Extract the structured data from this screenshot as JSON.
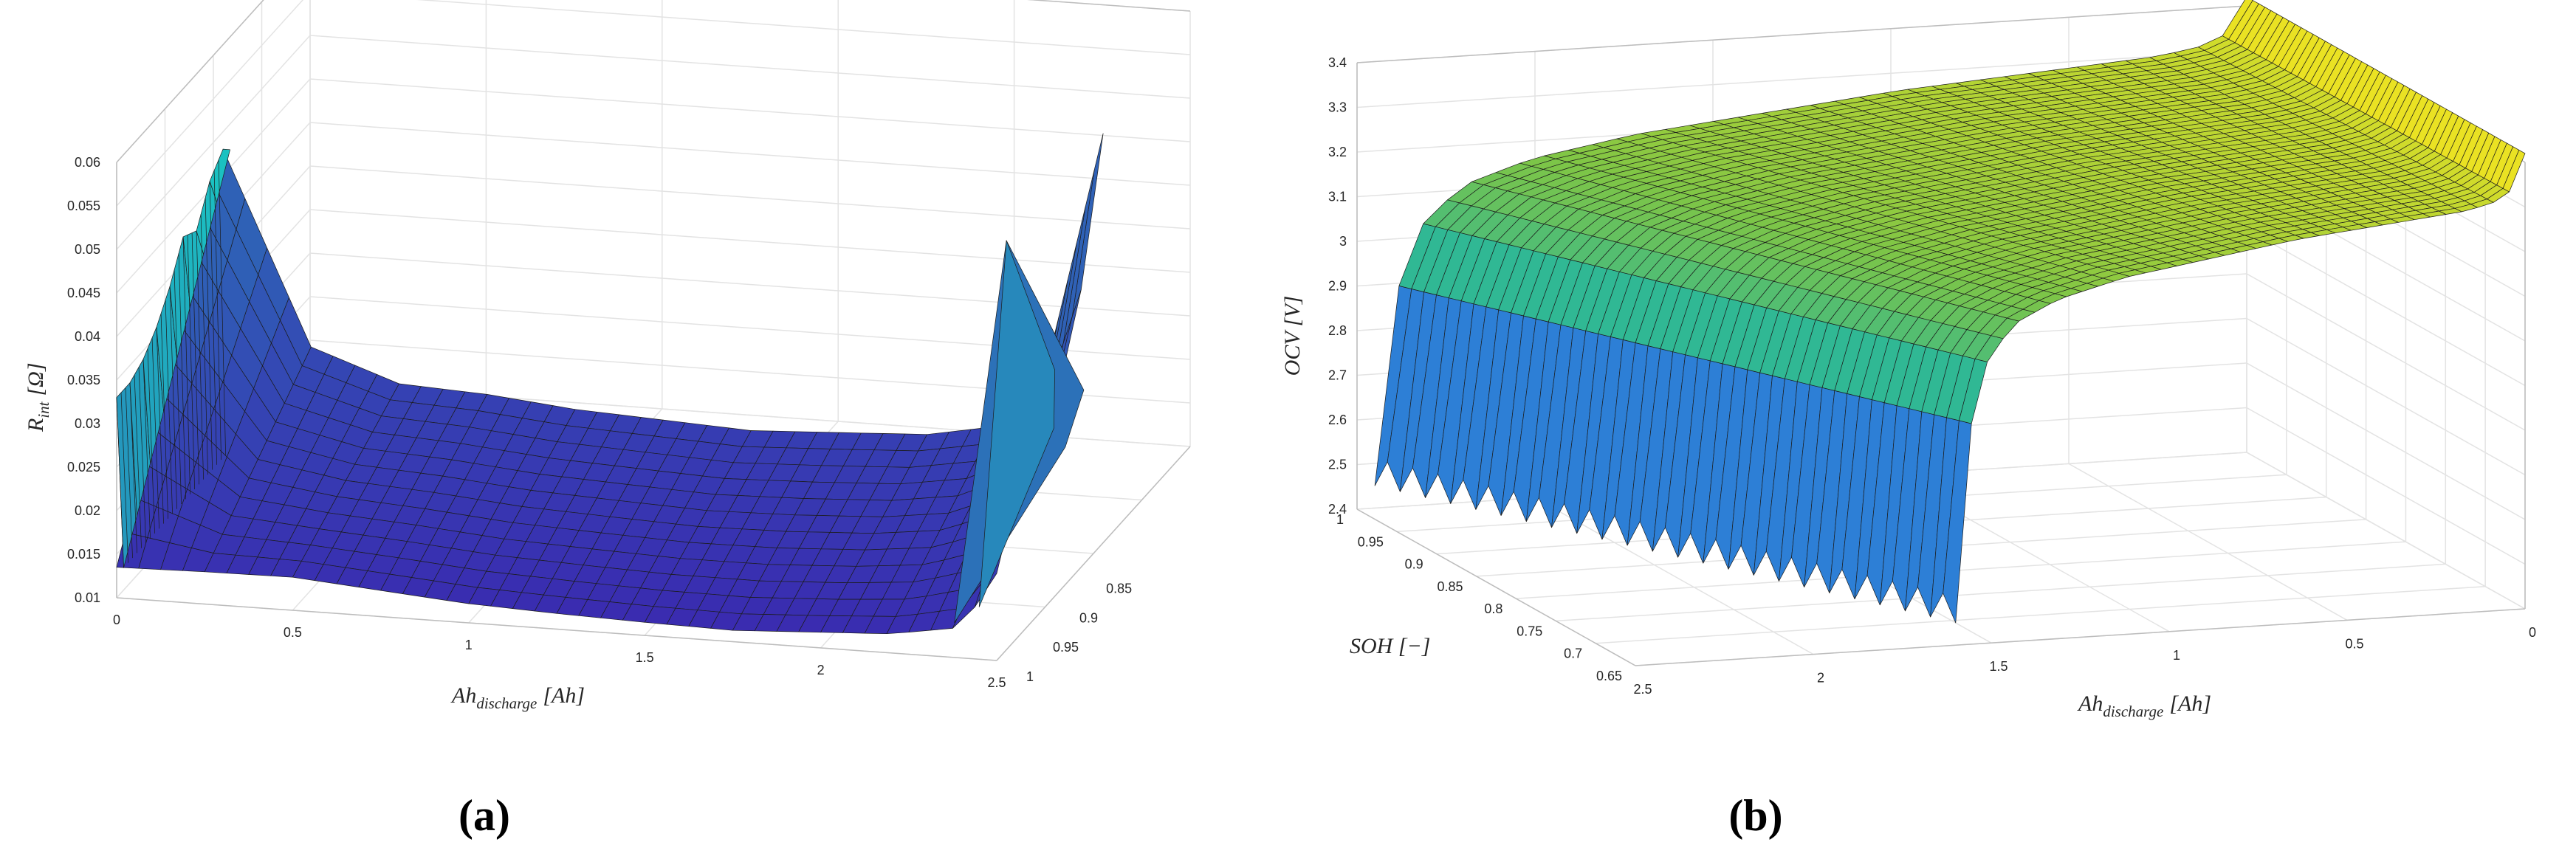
{
  "chart_data": [
    {
      "panel": "(a)",
      "type": "surface3d",
      "xlabel": "Ah",
      "xlabel_sub": "discharge",
      "xlabel_unit": "[Ah]",
      "zlabel": "R",
      "zlabel_sub": "int",
      "zlabel_unit": "[Ω]",
      "x_ticks": [
        "0",
        "0.5",
        "1",
        "1.5",
        "2",
        "2.5"
      ],
      "y_ticks": [
        "1",
        "0.95",
        "0.9",
        "0.85"
      ],
      "z_ticks": [
        "0.01",
        "0.015",
        "0.02",
        "0.025",
        "0.03",
        "0.035",
        "0.04",
        "0.045",
        "0.05",
        "0.055",
        "0.06"
      ],
      "xlim": [
        0,
        2.5
      ],
      "ylim": [
        0.8,
        1
      ],
      "zlim": [
        0.01,
        0.06
      ],
      "colormap": [
        "#3a2ab0",
        "#1ac7c2"
      ],
      "front_profile": {
        "x": [
          0,
          0.25,
          0.5,
          0.75,
          1.0,
          1.25,
          1.5,
          1.75,
          2.0,
          2.2,
          2.4,
          2.5
        ],
        "z": [
          0.0135,
          0.0137,
          0.0138,
          0.013,
          0.0122,
          0.0118,
          0.0115,
          0.0113,
          0.0118,
          0.0122,
          0.0135,
          0.02
        ]
      },
      "back_profile": {
        "x": [
          0,
          0.25,
          0.5,
          0.75,
          1.0,
          1.25,
          1.5,
          1.75,
          2.0,
          2.2,
          2.4,
          2.5
        ],
        "z": [
          0.048,
          0.026,
          0.0225,
          0.022,
          0.021,
          0.0205,
          0.02,
          0.0205,
          0.021,
          0.0225,
          0.028,
          0.057
        ]
      },
      "left_edge_z": [
        0.033,
        0.033,
        0.034,
        0.036,
        0.039,
        0.043,
        0.042,
        0.046,
        0.048
      ]
    },
    {
      "panel": "(b)",
      "type": "surface3d",
      "xlabel": "Ah",
      "xlabel_sub": "discharge",
      "xlabel_unit": "[Ah]",
      "ylabel": "SOH [−]",
      "zlabel": "OCV [V]",
      "x_ticks": [
        "2.5",
        "2",
        "1.5",
        "1",
        "0.5",
        "0"
      ],
      "y_ticks": [
        "1",
        "0.95",
        "0.9",
        "0.85",
        "0.8",
        "0.75",
        "0.7",
        "0.65"
      ],
      "z_ticks": [
        "2.4",
        "2.5",
        "2.6",
        "2.7",
        "2.8",
        "2.9",
        "3",
        "3.1",
        "3.2",
        "3.3",
        "3.4"
      ],
      "xlim": [
        0,
        2.5
      ],
      "ylim": [
        0.65,
        1
      ],
      "zlim": [
        2.4,
        3.4
      ],
      "colormap": [
        "#3b2cb5",
        "#2d7fd6",
        "#22b6a2",
        "#7ec546",
        "#f5e51f"
      ],
      "ocv_profile": {
        "soc_fraction": [
          0,
          0.005,
          0.02,
          0.05,
          0.1,
          0.18,
          0.3,
          0.45,
          0.6,
          0.75,
          0.9,
          0.96,
          0.99,
          1
        ],
        "ocv": [
          2.5,
          2.62,
          2.85,
          3.02,
          3.11,
          3.16,
          3.2,
          3.23,
          3.26,
          3.28,
          3.3,
          3.32,
          3.36,
          3.42
        ]
      },
      "capacity_range_ah": [
        2.45,
        1.6
      ]
    }
  ]
}
